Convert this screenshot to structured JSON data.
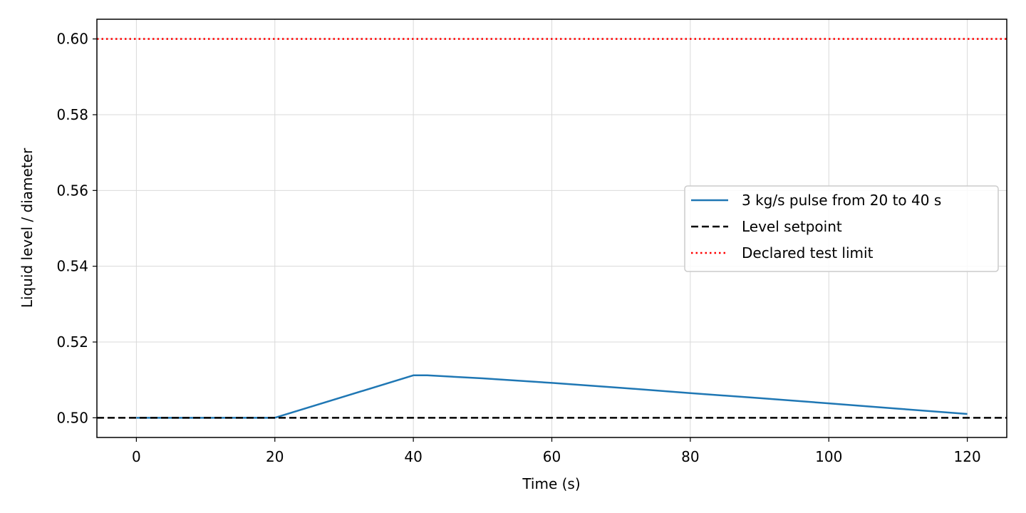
{
  "chart_data": {
    "type": "line",
    "xlabel": "Time (s)",
    "ylabel": "Liquid level / diameter",
    "xlim": [
      -5.7,
      125.7
    ],
    "ylim": [
      0.4948,
      0.6052
    ],
    "xticks": [
      0,
      20,
      40,
      60,
      80,
      100,
      120
    ],
    "yticks": [
      0.5,
      0.52,
      0.54,
      0.56,
      0.58,
      0.6
    ],
    "xtick_labels": [
      "0",
      "20",
      "40",
      "60",
      "80",
      "100",
      "120"
    ],
    "ytick_labels": [
      "0.50",
      "0.52",
      "0.54",
      "0.56",
      "0.58",
      "0.60"
    ],
    "grid": true,
    "legend_position": "center-right",
    "series": [
      {
        "name": "3 kg/s pulse from 20 to 40 s",
        "style": "solid",
        "color": "#1f77b4",
        "x": [
          0,
          20,
          40,
          42,
          50,
          60,
          70,
          80,
          90,
          100,
          110,
          120
        ],
        "y": [
          0.5,
          0.5,
          0.5112,
          0.5112,
          0.5104,
          0.5092,
          0.5079,
          0.5065,
          0.5052,
          0.5038,
          0.5024,
          0.501
        ]
      },
      {
        "name": "Level setpoint",
        "style": "dashed",
        "color": "#000000",
        "x": [
          -5.7,
          125.7
        ],
        "y": [
          0.5,
          0.5
        ]
      },
      {
        "name": "Declared test limit",
        "style": "dotted",
        "color": "#ff0000",
        "x": [
          -5.7,
          125.7
        ],
        "y": [
          0.6,
          0.6
        ]
      }
    ]
  }
}
